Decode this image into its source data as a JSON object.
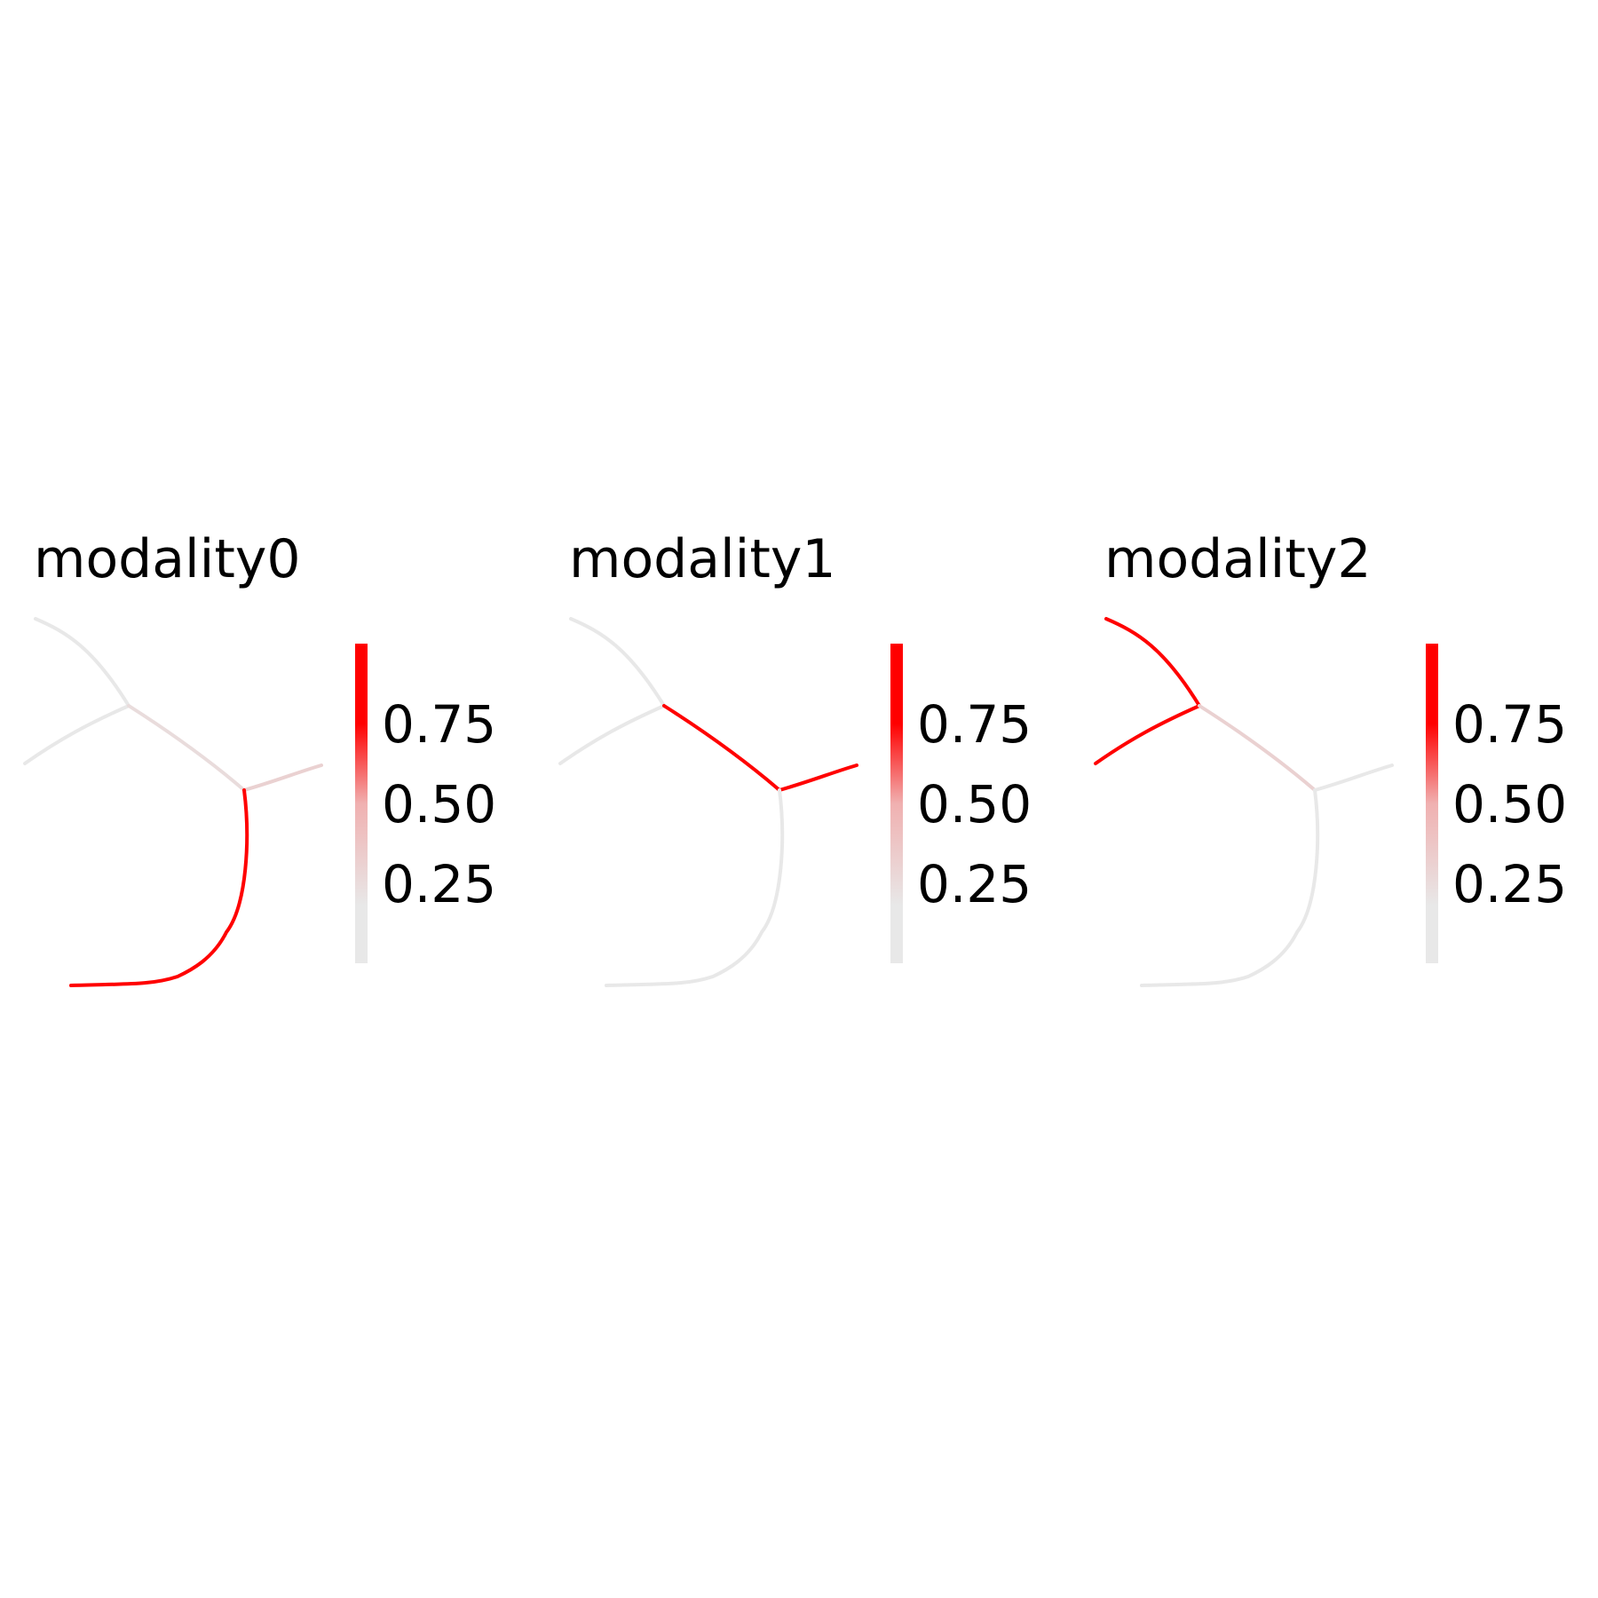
{
  "chart_data": [
    {
      "type": "scatter",
      "title": "modality0",
      "colorbar": {
        "range": [
          0,
          1
        ],
        "ticks": [
          "0.75",
          "0.50",
          "0.25"
        ],
        "tick_values": [
          0.75,
          0.5,
          0.25
        ],
        "colors": [
          "#e8e8e8",
          "#ff0000"
        ]
      },
      "branches": [
        {
          "name": "upper-left",
          "value": 0.0
        },
        {
          "name": "left",
          "value": 0.0
        },
        {
          "name": "middle",
          "value": 0.05
        },
        {
          "name": "right",
          "value": 0.1
        },
        {
          "name": "bottom",
          "value": 1.0
        }
      ]
    },
    {
      "type": "scatter",
      "title": "modality1",
      "colorbar": {
        "range": [
          0,
          1
        ],
        "ticks": [
          "0.75",
          "0.50",
          "0.25"
        ],
        "tick_values": [
          0.75,
          0.5,
          0.25
        ],
        "colors": [
          "#e8e8e8",
          "#ff0000"
        ]
      },
      "branches": [
        {
          "name": "upper-left",
          "value": 0.0
        },
        {
          "name": "left",
          "value": 0.0
        },
        {
          "name": "middle",
          "value": 1.0
        },
        {
          "name": "right",
          "value": 1.0
        },
        {
          "name": "bottom",
          "value": 0.0
        }
      ]
    },
    {
      "type": "scatter",
      "title": "modality2",
      "colorbar": {
        "range": [
          0,
          1
        ],
        "ticks": [
          "0.75",
          "0.50",
          "0.25"
        ],
        "tick_values": [
          0.75,
          0.5,
          0.25
        ],
        "colors": [
          "#e8e8e8",
          "#ff0000"
        ]
      },
      "branches": [
        {
          "name": "upper-left",
          "value": 1.0
        },
        {
          "name": "left",
          "value": 1.0
        },
        {
          "name": "middle",
          "value": 0.1
        },
        {
          "name": "right",
          "value": 0.0
        },
        {
          "name": "bottom",
          "value": 0.0
        }
      ]
    }
  ]
}
